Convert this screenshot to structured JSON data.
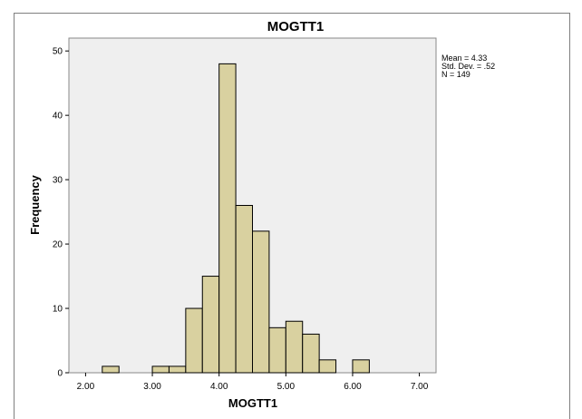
{
  "chart_data": {
    "type": "bar",
    "title": "MOGTT1",
    "xlabel": "MOGTT1",
    "ylabel": "Frequency",
    "xlim": [
      1.75,
      7.25
    ],
    "ylim": [
      0,
      52
    ],
    "x_ticks": [
      "2.00",
      "3.00",
      "4.00",
      "5.00",
      "6.00",
      "7.00"
    ],
    "y_ticks": [
      "0",
      "10",
      "20",
      "30",
      "40",
      "50"
    ],
    "bin_width": 0.25,
    "bins": [
      {
        "start": 2.25,
        "value": 1
      },
      {
        "start": 3.0,
        "value": 1
      },
      {
        "start": 3.25,
        "value": 1
      },
      {
        "start": 3.5,
        "value": 10
      },
      {
        "start": 3.75,
        "value": 15
      },
      {
        "start": 4.0,
        "value": 48
      },
      {
        "start": 4.25,
        "value": 26
      },
      {
        "start": 4.5,
        "value": 22
      },
      {
        "start": 4.75,
        "value": 7
      },
      {
        "start": 5.0,
        "value": 8
      },
      {
        "start": 5.25,
        "value": 6
      },
      {
        "start": 5.5,
        "value": 2
      },
      {
        "start": 6.0,
        "value": 2
      }
    ],
    "stats": [
      "Mean = 4.33",
      "Std. Dev. = .52",
      "N = 149"
    ],
    "grid": false,
    "colors": {
      "bar_fill": "#d9d1a0",
      "bar_stroke": "#000000",
      "plot_background": "#efefef",
      "frame": "#8a8a8a"
    }
  }
}
